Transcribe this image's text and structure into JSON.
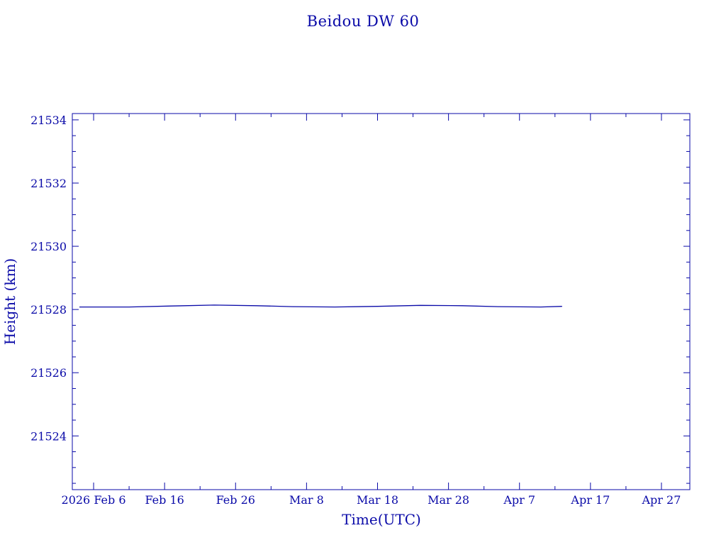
{
  "colors": {
    "ink": "#0a0aa8",
    "background": "#ffffff"
  },
  "chart_data": {
    "type": "line",
    "title": "Beidou DW 60",
    "xlabel": "Time(UTC)",
    "ylabel": "Height (km)",
    "xlim": [
      "2026-02-03",
      "2026-05-01"
    ],
    "ylim": [
      21522.3,
      21534.2
    ],
    "y_ticks": [
      21524,
      21526,
      21528,
      21530,
      21532,
      21534
    ],
    "y_tick_labels": [
      "21524",
      "21526",
      "21528",
      "21530",
      "21532",
      "21534"
    ],
    "x_ticks": [
      "2026-02-06",
      "2026-02-16",
      "2026-02-26",
      "2026-03-08",
      "2026-03-18",
      "2026-03-28",
      "2026-04-07",
      "2026-04-17",
      "2026-04-27"
    ],
    "x_tick_labels": [
      "2026 Feb  6",
      "Feb 16",
      "Feb 26",
      "Mar  8",
      "Mar 18",
      "Mar 28",
      "Apr  7",
      "Apr 17",
      "Apr 27"
    ],
    "grid": false,
    "series": [
      {
        "x": [
          "2026-02-04",
          "2026-02-11",
          "2026-02-17",
          "2026-02-23",
          "2026-03-01",
          "2026-03-06",
          "2026-03-12",
          "2026-03-18",
          "2026-03-24",
          "2026-03-30",
          "2026-04-04",
          "2026-04-10",
          "2026-04-13"
        ],
        "values": [
          21528.08,
          21528.08,
          21528.11,
          21528.14,
          21528.12,
          21528.09,
          21528.08,
          21528.1,
          21528.13,
          21528.12,
          21528.09,
          21528.08,
          21528.1
        ]
      }
    ]
  }
}
